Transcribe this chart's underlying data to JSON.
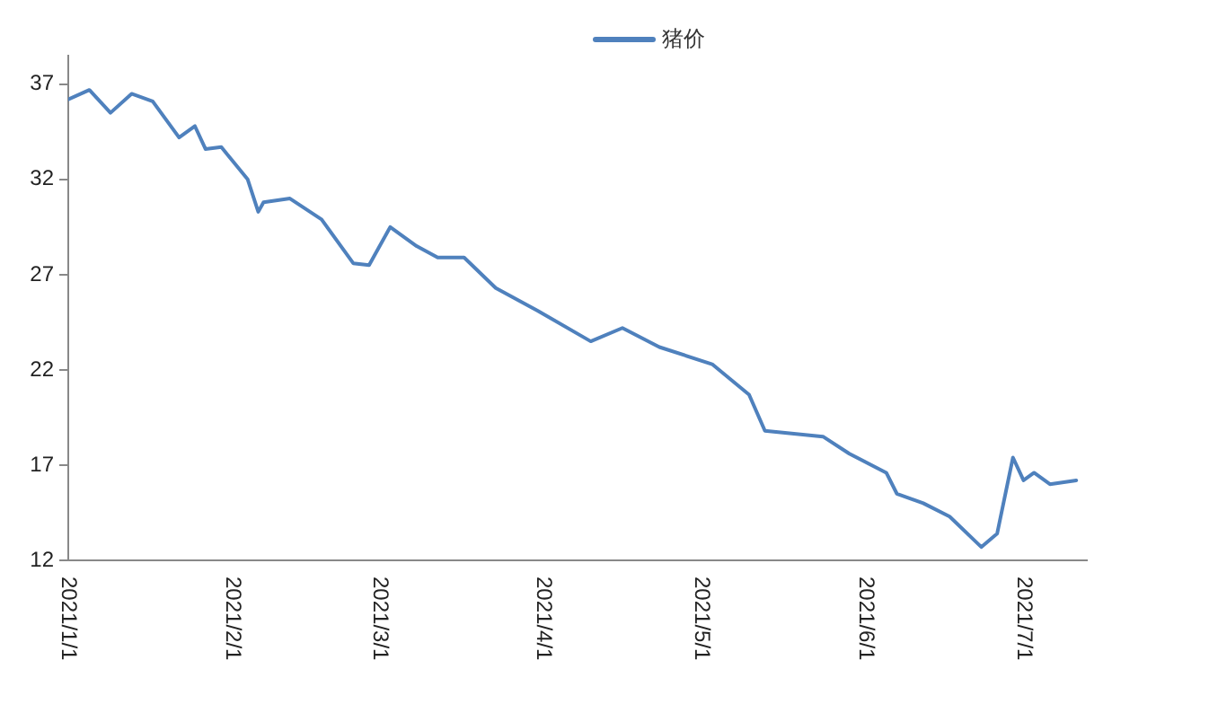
{
  "chart_data": {
    "type": "line",
    "x": [
      "2021-01-01",
      "2021-01-05",
      "2021-01-09",
      "2021-01-13",
      "2021-01-17",
      "2021-01-22",
      "2021-01-25",
      "2021-01-27",
      "2021-01-30",
      "2021-02-04",
      "2021-02-06",
      "2021-02-07",
      "2021-02-12",
      "2021-02-18",
      "2021-02-24",
      "2021-02-27",
      "2021-03-03",
      "2021-03-08",
      "2021-03-12",
      "2021-03-17",
      "2021-03-23",
      "2021-03-31",
      "2021-04-10",
      "2021-04-16",
      "2021-04-23",
      "2021-05-03",
      "2021-05-10",
      "2021-05-13",
      "2021-05-24",
      "2021-05-29",
      "2021-06-05",
      "2021-06-07",
      "2021-06-12",
      "2021-06-17",
      "2021-06-23",
      "2021-06-26",
      "2021-06-29",
      "2021-07-01",
      "2021-07-03",
      "2021-07-06",
      "2021-07-11"
    ],
    "series": [
      {
        "name": "猪价",
        "color": "#4f81bd",
        "values": [
          36.2,
          36.7,
          35.5,
          36.5,
          36.1,
          34.2,
          34.8,
          33.6,
          33.7,
          32.0,
          30.3,
          30.8,
          31.0,
          29.9,
          27.6,
          27.5,
          29.5,
          28.5,
          27.9,
          27.9,
          26.3,
          25.1,
          23.5,
          24.2,
          23.2,
          22.3,
          20.7,
          18.8,
          18.5,
          17.6,
          16.6,
          15.5,
          15.0,
          14.3,
          12.7,
          13.4,
          17.4,
          16.2,
          16.6,
          16.0,
          16.2
        ]
      }
    ],
    "xlim": [
      "2021-01-01",
      "2021-07-13"
    ],
    "xticks": [
      {
        "value": "2021-01-01",
        "label": "2021/1/1"
      },
      {
        "value": "2021-02-01",
        "label": "2021/2/1"
      },
      {
        "value": "2021-03-01",
        "label": "2021/3/1"
      },
      {
        "value": "2021-04-01",
        "label": "2021/4/1"
      },
      {
        "value": "2021-05-01",
        "label": "2021/5/1"
      },
      {
        "value": "2021-06-01",
        "label": "2021/6/1"
      },
      {
        "value": "2021-07-01",
        "label": "2021/7/1"
      }
    ],
    "ylim": [
      12,
      38.5
    ],
    "yticks": [
      12,
      17,
      22,
      27,
      32,
      37
    ],
    "grid": false,
    "legend": "top right",
    "marker": "none",
    "line_style": "solid"
  }
}
